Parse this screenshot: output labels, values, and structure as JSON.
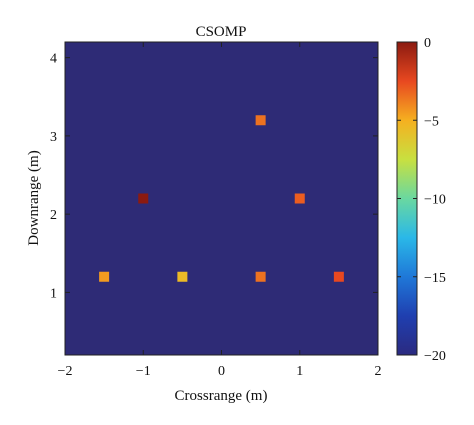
{
  "chart_data": {
    "type": "heatmap",
    "title": "CSOMP",
    "xlabel": "Crossrange (m)",
    "ylabel": "Downrange (m)",
    "xlim": [
      -2,
      2
    ],
    "ylim": [
      0.2,
      4.2
    ],
    "xticks": [
      -2,
      -1,
      0,
      1,
      2
    ],
    "yticks": [
      1,
      2,
      3,
      4
    ],
    "background_value": -20,
    "colorbar": {
      "min": -20,
      "max": 0,
      "ticks": [
        0,
        -5,
        -10,
        -15,
        -20
      ]
    },
    "points": [
      {
        "x": -1.5,
        "y": 1.2,
        "value": -4.5
      },
      {
        "x": -0.5,
        "y": 1.2,
        "value": -5.5
      },
      {
        "x": 0.5,
        "y": 1.2,
        "value": -3.5
      },
      {
        "x": 1.5,
        "y": 1.2,
        "value": -2.5
      },
      {
        "x": -1.0,
        "y": 2.2,
        "value": 0
      },
      {
        "x": 1.0,
        "y": 2.2,
        "value": -3.0
      },
      {
        "x": 0.5,
        "y": 3.2,
        "value": -3.5
      }
    ],
    "grid": false,
    "colormap": "jet"
  }
}
